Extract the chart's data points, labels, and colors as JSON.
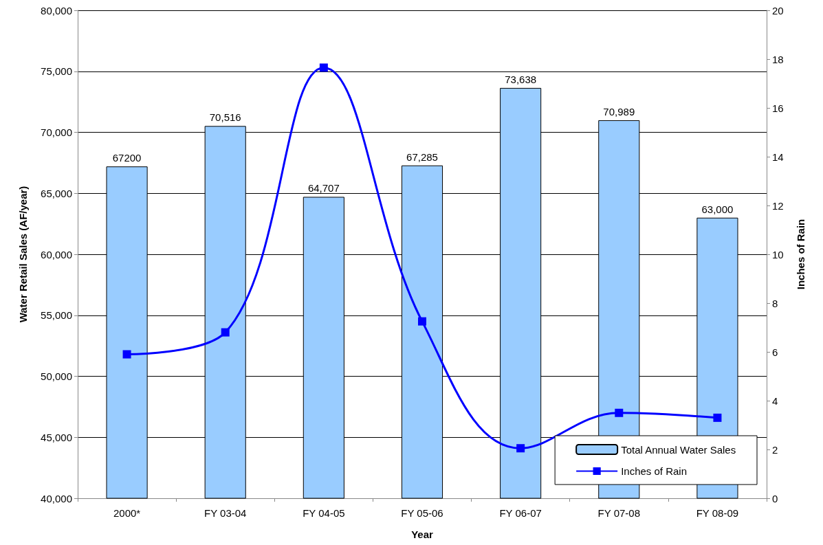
{
  "chart_data": {
    "type": "bar",
    "xlabel": "Year",
    "ylabel": "Water Retail Sales (AF/year)",
    "y2label": "Inches of Rain",
    "categories": [
      "2000*",
      "FY 03-04",
      "FY 04-05",
      "FY 05-06",
      "FY 06-07",
      "FY 07-08",
      "FY 08-09"
    ],
    "series": [
      {
        "name": "Total Annual Water Sales",
        "color": "#99ccff",
        "values": [
          67200,
          70516,
          64707,
          67285,
          73638,
          70989,
          63000
        ],
        "value_labels": [
          "67200",
          "70,516",
          "64,707",
          "67,285",
          "73,638",
          "70,989",
          "63,000"
        ]
      },
      {
        "name": "Inches of Rain",
        "type": "line",
        "axis": "y2",
        "color": "#0000ff",
        "marker": "square",
        "line_style": "solid",
        "values": [
          5.9,
          6.8,
          17.65,
          7.25,
          2.05,
          3.5,
          3.3
        ]
      }
    ],
    "ylim": [
      40000,
      80000
    ],
    "yticks": [
      {
        "value": 40000,
        "label": "40,000"
      },
      {
        "value": 45000,
        "label": "45,000"
      },
      {
        "value": 50000,
        "label": "50,000"
      },
      {
        "value": 55000,
        "label": "55,000"
      },
      {
        "value": 60000,
        "label": "60,000"
      },
      {
        "value": 65000,
        "label": "65,000"
      },
      {
        "value": 70000,
        "label": "70,000"
      },
      {
        "value": 75000,
        "label": "75,000"
      },
      {
        "value": 80000,
        "label": "80,000"
      }
    ],
    "y2lim": [
      0,
      20
    ],
    "y2ticks": [
      0,
      2,
      4,
      6,
      8,
      10,
      12,
      14,
      16,
      18,
      20
    ],
    "grid": "y",
    "legend": "bottom right"
  }
}
